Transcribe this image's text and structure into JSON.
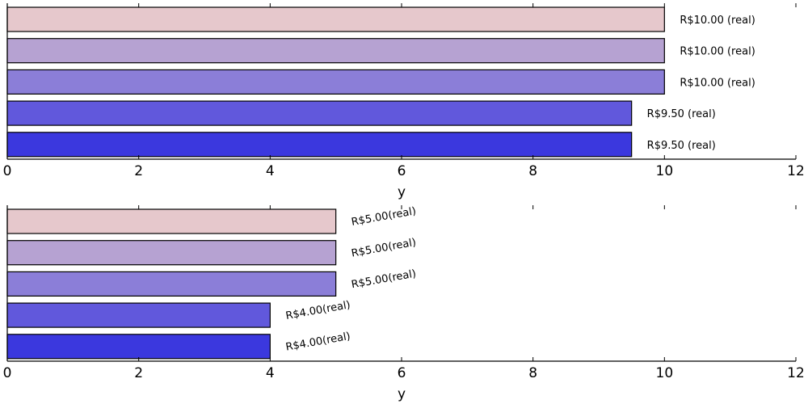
{
  "chart_data": [
    {
      "type": "bar",
      "orientation": "horizontal",
      "categories": [
        "",
        "",
        "",
        "",
        ""
      ],
      "values": [
        10.0,
        10.0,
        10.0,
        9.5,
        9.5
      ],
      "data_labels": [
        "R$10.00 (real)",
        "R$10.00 (real)",
        "R$10.00 (real)",
        "R$9.50 (real)",
        "R$9.50 (real)"
      ],
      "bar_colors": [
        "#e6c8cc",
        "#b6a2d2",
        "#8b7ed8",
        "#6158dc",
        "#3b38de"
      ],
      "label_rotation": 0,
      "xlabel": "y",
      "xlim": [
        0,
        12
      ],
      "xticks": [
        0,
        2,
        4,
        6,
        8,
        10,
        12
      ],
      "xtick_labels": [
        "0",
        "2",
        "4",
        "6",
        "8",
        "10",
        "12"
      ],
      "grid": false
    },
    {
      "type": "bar",
      "orientation": "horizontal",
      "categories": [
        "",
        "",
        "",
        "",
        ""
      ],
      "values": [
        5.0,
        5.0,
        5.0,
        4.0,
        4.0
      ],
      "data_labels": [
        "R$5.00(real)",
        "R$5.00(real)",
        "R$5.00(real)",
        "R$4.00(real)",
        "R$4.00(real)"
      ],
      "bar_colors": [
        "#e6c8cc",
        "#b6a2d2",
        "#8b7ed8",
        "#6158dc",
        "#3b38de"
      ],
      "label_rotation": -10,
      "xlabel": "y",
      "xlim": [
        0,
        12
      ],
      "xticks": [
        0,
        2,
        4,
        6,
        8,
        10,
        12
      ],
      "xtick_labels": [
        "0",
        "2",
        "4",
        "6",
        "8",
        "10",
        "12"
      ],
      "grid": false
    }
  ]
}
